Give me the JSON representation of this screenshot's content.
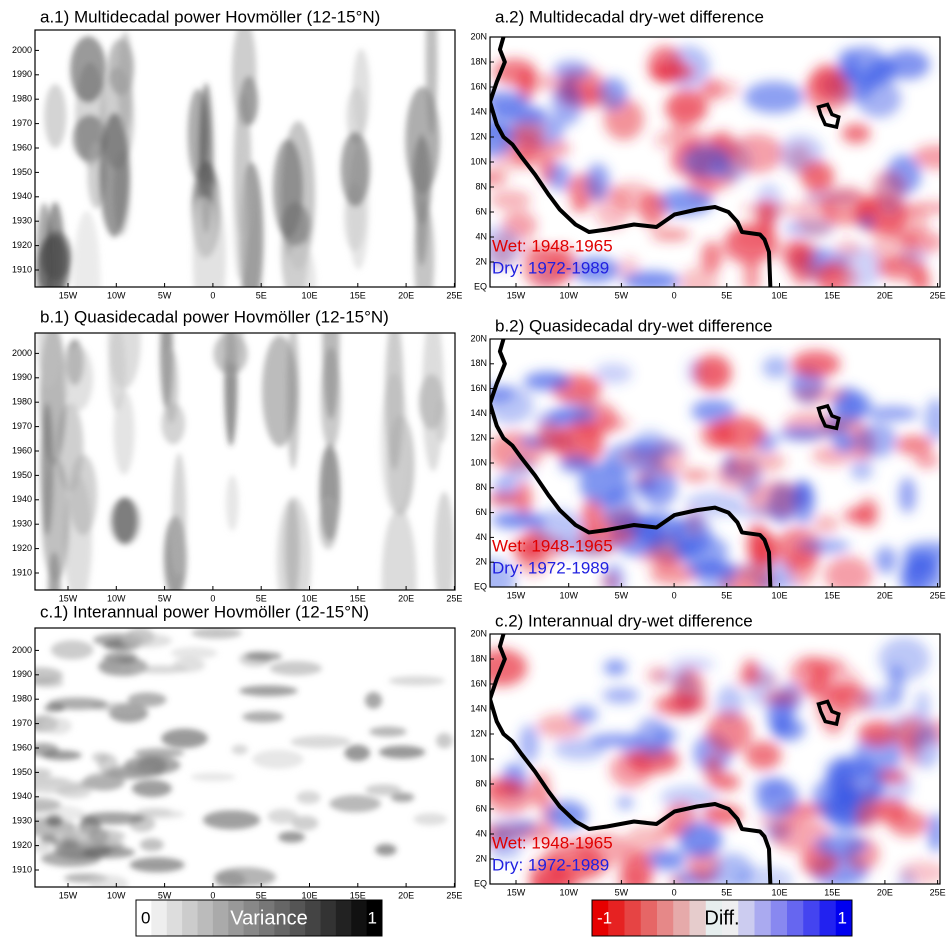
{
  "panels": [
    {
      "title": "a.1) Multidecadal power Hovmöller (12-15°N)",
      "y_labels": [
        "1910",
        "1920",
        "1930",
        "1940",
        "1950",
        "1960",
        "1970",
        "1980",
        "1990",
        "2000"
      ],
      "x_labels": [
        "15W",
        "10W",
        "5W",
        "0",
        "5E",
        "10E",
        "15E",
        "20E",
        "25E"
      ]
    },
    {
      "title": "a.2) Multidecadal dry-wet difference",
      "y_labels": [
        "EQ",
        "2N",
        "4N",
        "6N",
        "8N",
        "10N",
        "12N",
        "14N",
        "16N",
        "18N",
        "20N"
      ],
      "x_labels": [
        "15W",
        "10W",
        "5W",
        "0",
        "5E",
        "10E",
        "15E",
        "20E",
        "25E"
      ],
      "annotations": [
        "Wet: 1948-1965",
        "Dry: 1972-1989"
      ]
    },
    {
      "title": "b.1) Quasidecadal power Hovmöller (12-15°N)",
      "y_labels": [
        "1910",
        "1920",
        "1930",
        "1940",
        "1950",
        "1960",
        "1970",
        "1980",
        "1990",
        "2000"
      ],
      "x_labels": [
        "15W",
        "10W",
        "5W",
        "0",
        "5E",
        "10E",
        "15E",
        "20E",
        "25E"
      ]
    },
    {
      "title": "b.2) Quasidecadal dry-wet difference",
      "y_labels": [
        "EQ",
        "2N",
        "4N",
        "6N",
        "8N",
        "10N",
        "12N",
        "14N",
        "16N",
        "18N",
        "20N"
      ],
      "x_labels": [
        "15W",
        "10W",
        "5W",
        "0",
        "5E",
        "10E",
        "15E",
        "20E",
        "25E"
      ],
      "annotations": [
        "Wet: 1948-1965",
        "Dry: 1972-1989"
      ]
    },
    {
      "title": "c.1) Interannual power Hovmöller (12-15°N)",
      "y_labels": [
        "1910",
        "1920",
        "1930",
        "1940",
        "1950",
        "1960",
        "1970",
        "1980",
        "1990",
        "2000"
      ],
      "x_labels": [
        "15W",
        "10W",
        "5W",
        "0",
        "5E",
        "10E",
        "15E",
        "20E",
        "25E"
      ]
    },
    {
      "title": "c.2) Interannual dry-wet difference",
      "y_labels": [
        "EQ",
        "2N",
        "4N",
        "6N",
        "8N",
        "10N",
        "12N",
        "14N",
        "16N",
        "18N",
        "20N"
      ],
      "x_labels": [
        "15W",
        "10W",
        "5W",
        "0",
        "5E",
        "10E",
        "15E",
        "20E",
        "25E"
      ],
      "annotations": [
        "Wet: 1948-1965",
        "Dry: 1972-1989"
      ]
    }
  ],
  "legends": [
    {
      "labels": [
        "0",
        "Variance",
        "1"
      ]
    },
    {
      "labels": [
        "-1",
        "Diff.",
        "1"
      ]
    }
  ]
}
